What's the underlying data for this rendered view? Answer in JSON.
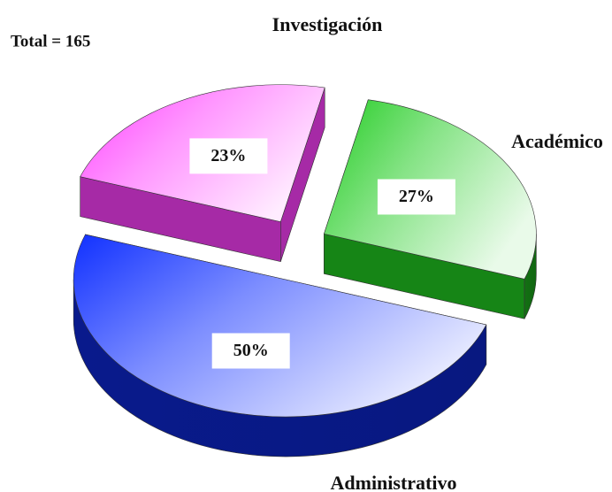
{
  "chart_data": {
    "type": "pie",
    "annotation": "Total = 165",
    "categories": [
      "Académico",
      "Administrativo",
      "Investigación"
    ],
    "values": [
      27,
      50,
      23
    ],
    "value_labels": [
      "27%",
      "50%",
      "23%"
    ],
    "colors": [
      "#22cc22",
      "#1030ff",
      "#ff40ff"
    ],
    "start_angle": -78
  }
}
